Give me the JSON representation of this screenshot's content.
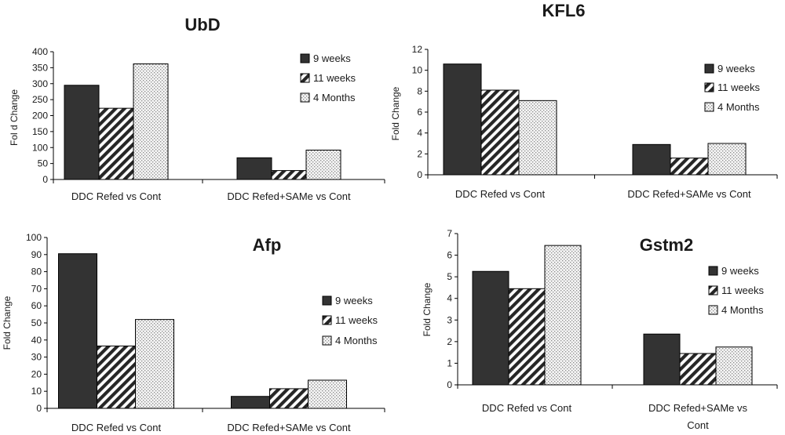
{
  "chart_data": [
    {
      "type": "bar",
      "title": "UbD",
      "ylabel": "Fol d Change",
      "ylim": [
        0,
        400
      ],
      "yticks": [
        "0",
        "50",
        "100",
        "150",
        "200",
        "250",
        "300",
        "350",
        "400"
      ],
      "categories": [
        "DDC Refed vs Cont",
        "DDC Refed+SAMe vs Cont"
      ],
      "series": [
        {
          "name": "9 weeks",
          "values": [
            295,
            68
          ]
        },
        {
          "name": "11 weeks",
          "values": [
            223,
            28
          ]
        },
        {
          "name": "4 Months",
          "values": [
            362,
            92
          ]
        }
      ]
    },
    {
      "type": "bar",
      "title": "KFL6",
      "ylabel": "Fold Change",
      "ylim": [
        0,
        12
      ],
      "yticks": [
        "0",
        "2",
        "4",
        "6",
        "8",
        "10",
        "12"
      ],
      "categories": [
        "DDC Refed vs Cont",
        "DDC Refed+SAMe vs Cont"
      ],
      "series": [
        {
          "name": "9 weeks",
          "values": [
            10.6,
            2.9
          ]
        },
        {
          "name": "11 weeks",
          "values": [
            8.1,
            1.6
          ]
        },
        {
          "name": "4 Months",
          "values": [
            7.1,
            3.0
          ]
        }
      ]
    },
    {
      "type": "bar",
      "title": "Afp",
      "ylabel": "Fold Change",
      "ylim": [
        0,
        100
      ],
      "yticks": [
        "0",
        "10",
        "20",
        "30",
        "40",
        "50",
        "60",
        "70",
        "80",
        "90",
        "100"
      ],
      "categories": [
        "DDC Refed vs Cont",
        "DDC Refed+SAMe vs Cont"
      ],
      "series": [
        {
          "name": "9 weeks",
          "values": [
            90.5,
            7
          ]
        },
        {
          "name": "11 weeks",
          "values": [
            36.5,
            11.5
          ]
        },
        {
          "name": "4 Months",
          "values": [
            52,
            16.5
          ]
        }
      ]
    },
    {
      "type": "bar",
      "title": "Gstm2",
      "ylabel": "Fold Change",
      "ylim": [
        0,
        7
      ],
      "yticks": [
        "0",
        "1",
        "2",
        "3",
        "4",
        "5",
        "6",
        "7"
      ],
      "categories": [
        "DDC Refed vs Cont",
        "DDC Refed+SAMe vs Cont"
      ],
      "series": [
        {
          "name": "9 weeks",
          "values": [
            5.25,
            2.35
          ]
        },
        {
          "name": "11 weeks",
          "values": [
            4.45,
            1.45
          ]
        },
        {
          "name": "4 Months",
          "values": [
            6.45,
            1.75
          ]
        }
      ]
    }
  ],
  "series_fills": [
    "dark",
    "diagonal-hatch",
    "dotted"
  ],
  "colors": {
    "dark": "#333333",
    "hatch_bg": "#ffffff",
    "dots": "#9a9a9a",
    "axis": "#000000"
  }
}
